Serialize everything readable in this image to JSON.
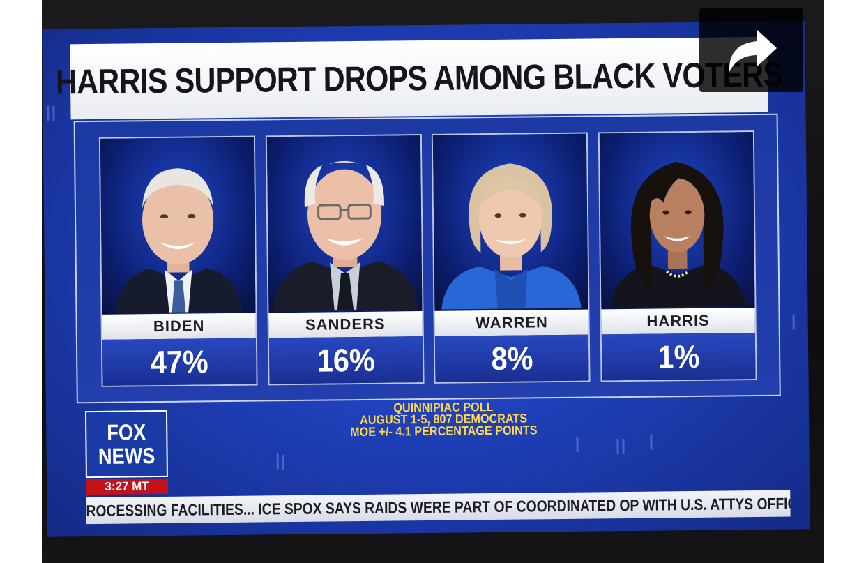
{
  "broadcast": {
    "headline": "HARRIS SUPPORT DROPS AMONG BLACK VOTERS",
    "candidates": [
      {
        "name": "BIDEN",
        "percent": "47%",
        "value": 47
      },
      {
        "name": "SANDERS",
        "percent": "16%",
        "value": 16
      },
      {
        "name": "WARREN",
        "percent": "8%",
        "value": 8
      },
      {
        "name": "HARRIS",
        "percent": "1%",
        "value": 1
      }
    ],
    "source": {
      "line1": "QUINNIPIAC POLL",
      "line2": "AUGUST 1-5, 807 DEMOCRATS",
      "line3": "MOE +/- 4.1 PERCENTAGE POINTS"
    },
    "network": {
      "logo_line1": "FOX",
      "logo_line2": "NEWS",
      "time": "3:27 MT"
    },
    "ticker": {
      "text": "ROCESSING FACILITIES...   ICE SPOX SAYS RAIDS WERE PART OF COORDINATED OP WITH U.S. ATTYS OFFICE"
    }
  },
  "overlay": {
    "share_icon": "share-arrow-icon"
  },
  "colors": {
    "screen_blue": "#1f3fb8",
    "ticker_gray": "#d8dce6",
    "time_red": "#c4121a",
    "source_yellow": "#ffd84a"
  }
}
